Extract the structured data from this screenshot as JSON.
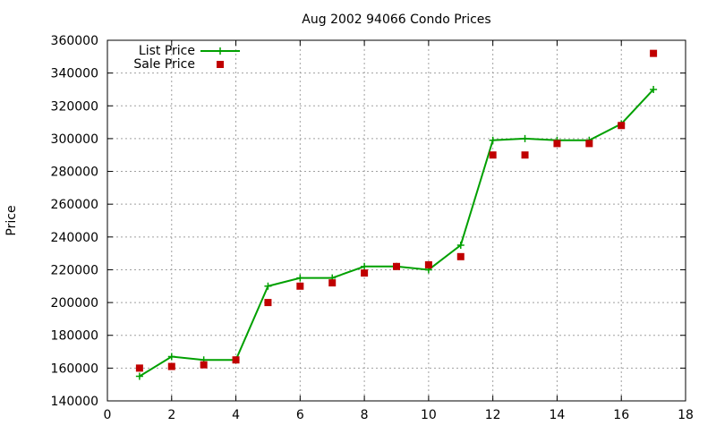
{
  "chart_data": {
    "type": "line",
    "title": "Aug 2002 94066 Condo Prices",
    "xlabel": "",
    "ylabel": "Price",
    "xlim": [
      0,
      18
    ],
    "ylim": [
      140000,
      360000
    ],
    "xticks": [
      0,
      2,
      4,
      6,
      8,
      10,
      12,
      14,
      16,
      18
    ],
    "yticks": [
      140000,
      160000,
      180000,
      200000,
      220000,
      240000,
      260000,
      280000,
      300000,
      320000,
      340000,
      360000
    ],
    "grid": true,
    "legend_position": "top-left",
    "series": [
      {
        "name": "List Price",
        "style": "line-with-plus-markers",
        "color": "#00a000",
        "x": [
          1,
          2,
          3,
          4,
          5,
          6,
          7,
          8,
          9,
          10,
          11,
          12,
          13,
          14,
          15,
          16,
          17
        ],
        "y": [
          155000,
          167000,
          165000,
          165000,
          210000,
          215000,
          215000,
          222000,
          222000,
          220000,
          235000,
          299000,
          300000,
          299000,
          299000,
          309000,
          330000
        ]
      },
      {
        "name": "Sale Price",
        "style": "square-markers",
        "color": "#c00000",
        "x": [
          1,
          2,
          3,
          4,
          5,
          6,
          7,
          8,
          9,
          10,
          11,
          12,
          13,
          14,
          15,
          16,
          17
        ],
        "y": [
          160000,
          161000,
          162000,
          165000,
          200000,
          210000,
          212000,
          218000,
          222000,
          223000,
          228000,
          290000,
          290000,
          297000,
          297000,
          308000,
          352000
        ]
      }
    ]
  }
}
